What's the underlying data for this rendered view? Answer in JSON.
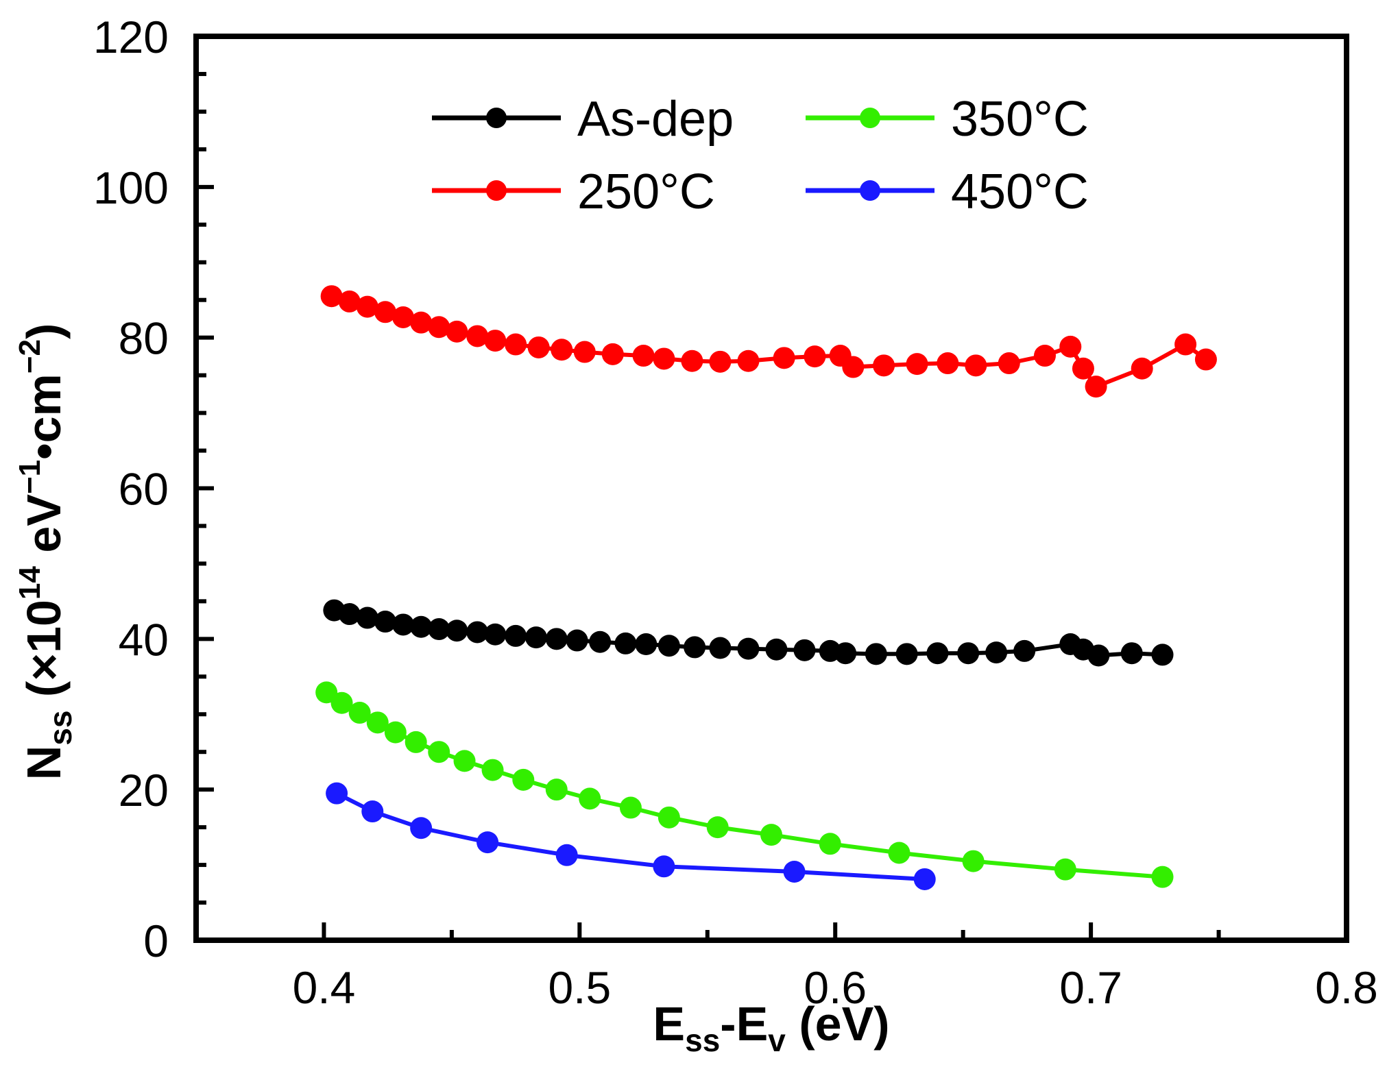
{
  "chart_data": {
    "type": "line",
    "title": "",
    "xlabel": {
      "main": "E",
      "sub1": "ss",
      "mid": "-E",
      "sub2": "v",
      "tail": " (eV)"
    },
    "ylabel": {
      "main": "N",
      "sub": "ss",
      "paren": " (×10",
      "exp1": "14",
      "unit1": " eV",
      "exp2": "−1",
      "unit2": "•cm",
      "exp3": "−2",
      "close": ")"
    },
    "xlim": [
      0.35,
      0.8
    ],
    "ylim": [
      0,
      120
    ],
    "x_ticks": [
      0.4,
      0.5,
      0.6,
      0.7,
      0.8
    ],
    "x_tick_labels": [
      "0.4",
      "0.5",
      "0.6",
      "0.7",
      "0.8"
    ],
    "y_ticks": [
      0,
      20,
      40,
      60,
      80,
      100,
      120
    ],
    "y_tick_labels": [
      "0",
      "20",
      "40",
      "60",
      "80",
      "100",
      "120"
    ],
    "legend_position": "top, two columns",
    "series": [
      {
        "name": "As-dep",
        "color": "#000000",
        "x": [
          0.404,
          0.41,
          0.417,
          0.424,
          0.431,
          0.438,
          0.445,
          0.452,
          0.46,
          0.467,
          0.475,
          0.483,
          0.491,
          0.499,
          0.508,
          0.518,
          0.526,
          0.535,
          0.545,
          0.555,
          0.566,
          0.577,
          0.588,
          0.598,
          0.604,
          0.616,
          0.628,
          0.64,
          0.652,
          0.663,
          0.674,
          0.692,
          0.697,
          0.703,
          0.716,
          0.728
        ],
        "values": [
          43.8,
          43.3,
          42.8,
          42.3,
          41.9,
          41.6,
          41.3,
          41.1,
          40.9,
          40.6,
          40.4,
          40.2,
          40.0,
          39.8,
          39.6,
          39.4,
          39.3,
          39.1,
          38.9,
          38.8,
          38.7,
          38.6,
          38.5,
          38.4,
          38.1,
          38.0,
          38.0,
          38.1,
          38.1,
          38.2,
          38.4,
          39.3,
          38.6,
          37.8,
          38.1,
          37.9
        ]
      },
      {
        "name": "250°C",
        "color": "#ff0000",
        "x": [
          0.403,
          0.41,
          0.417,
          0.424,
          0.431,
          0.438,
          0.445,
          0.452,
          0.46,
          0.467,
          0.475,
          0.484,
          0.493,
          0.502,
          0.513,
          0.525,
          0.533,
          0.544,
          0.555,
          0.566,
          0.58,
          0.592,
          0.602,
          0.607,
          0.619,
          0.632,
          0.644,
          0.655,
          0.668,
          0.682,
          0.692,
          0.697,
          0.702,
          0.72,
          0.737,
          0.745
        ],
        "values": [
          85.5,
          84.8,
          84.1,
          83.4,
          82.7,
          82.0,
          81.4,
          80.8,
          80.2,
          79.6,
          79.1,
          78.7,
          78.4,
          78.1,
          77.8,
          77.6,
          77.2,
          76.9,
          76.8,
          76.9,
          77.3,
          77.5,
          77.6,
          76.1,
          76.3,
          76.5,
          76.6,
          76.3,
          76.6,
          77.6,
          78.8,
          75.9,
          73.5,
          75.9,
          79.1,
          77.1
        ]
      },
      {
        "name": "350°C",
        "color": "#33ee00",
        "x": [
          0.401,
          0.407,
          0.414,
          0.421,
          0.428,
          0.436,
          0.445,
          0.455,
          0.466,
          0.478,
          0.491,
          0.504,
          0.52,
          0.535,
          0.554,
          0.575,
          0.598,
          0.625,
          0.654,
          0.69,
          0.728
        ],
        "values": [
          32.9,
          31.5,
          30.2,
          28.9,
          27.6,
          26.3,
          25.0,
          23.8,
          22.6,
          21.3,
          20.0,
          18.8,
          17.6,
          16.3,
          15.0,
          14.0,
          12.8,
          11.6,
          10.5,
          9.4,
          8.4
        ]
      },
      {
        "name": "450°C",
        "color": "#1a1aff",
        "x": [
          0.405,
          0.419,
          0.438,
          0.464,
          0.495,
          0.533,
          0.584,
          0.635
        ],
        "values": [
          19.5,
          17.1,
          14.9,
          13.0,
          11.3,
          9.8,
          9.1,
          8.1
        ]
      }
    ]
  }
}
